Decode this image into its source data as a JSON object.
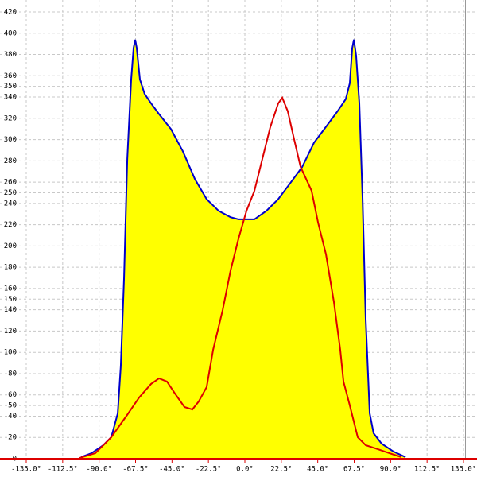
{
  "chart_data": {
    "type": "area-line",
    "xlim": [
      -135,
      135
    ],
    "ylim": [
      0,
      420
    ],
    "xticks": [
      {
        "value": -135,
        "label": "-135.0°"
      },
      {
        "value": -112.5,
        "label": "-112.5°"
      },
      {
        "value": -90,
        "label": "-90.0°"
      },
      {
        "value": -67.5,
        "label": "-67.5°"
      },
      {
        "value": -45,
        "label": "-45.0°"
      },
      {
        "value": -22.5,
        "label": "-22.5°"
      },
      {
        "value": 0,
        "label": "0.0°"
      },
      {
        "value": 22.5,
        "label": "22.5°"
      },
      {
        "value": 45,
        "label": "45.0°"
      },
      {
        "value": 67.5,
        "label": "67.5°"
      },
      {
        "value": 90,
        "label": "90.0°"
      },
      {
        "value": 112.5,
        "label": "112.5°"
      },
      {
        "value": 135,
        "label": "135.0°"
      }
    ],
    "yticks": [
      0,
      20,
      40,
      50,
      60,
      80,
      100,
      120,
      140,
      150,
      160,
      180,
      200,
      220,
      240,
      250,
      260,
      280,
      300,
      320,
      340,
      350,
      360,
      380,
      400,
      420
    ],
    "grid": true,
    "series": [
      {
        "color": "#0000cc",
        "fill": "#ffff00",
        "x": [
          -101.1,
          -94.7,
          -87.4,
          -82.5,
          -78.5,
          -76.6,
          -74.6,
          -72.6,
          -70.2,
          -68.7,
          -67.7,
          -66.8,
          -64.8,
          -61.9,
          -57.9,
          -53,
          -45.7,
          -38.3,
          -30.9,
          -23.6,
          -16.2,
          -8.8,
          -3.9,
          1,
          5.9,
          13.3,
          20.6,
          28,
          35.3,
          42.7,
          50.1,
          57.4,
          62.3,
          64.8,
          66.3,
          67.3,
          68.7,
          70.7,
          72.7,
          74.6,
          77.1,
          79.5,
          84.4,
          91.8,
          99.2
        ],
        "values": [
          1.5,
          5.2,
          12.7,
          20.2,
          42.6,
          87.4,
          169.7,
          281.8,
          356.5,
          386.4,
          393.9,
          386.4,
          356.5,
          343,
          334,
          324,
          310,
          289,
          263,
          244,
          233,
          227,
          225,
          225,
          225,
          233,
          244,
          259,
          274,
          297,
          312,
          327,
          338,
          353,
          386,
          394,
          379,
          334,
          244,
          132,
          42.6,
          23.9,
          14.2,
          6.7,
          1.5
        ]
      },
      {
        "color": "#dd0000",
        "x": [
          -102.1,
          -92.3,
          -82.5,
          -72.7,
          -65.3,
          -57.9,
          -53,
          -48.1,
          -43.2,
          -37.3,
          -32.4,
          -28.5,
          -23.6,
          -19.6,
          -13.7,
          -8.8,
          -3.9,
          1,
          5.9,
          10.8,
          15.7,
          20.6,
          23.1,
          26.5,
          30.4,
          34.4,
          37.8,
          41.2,
          45.2,
          50.1,
          55,
          58.9,
          60.9,
          64.8,
          69.7,
          74.6,
          82,
          89.3,
          96.7
        ],
        "values": [
          0.7,
          5.2,
          20.2,
          41.1,
          57.5,
          70.3,
          75.5,
          72.5,
          61.3,
          48.6,
          46.3,
          53.8,
          67.3,
          102.4,
          139.8,
          177.1,
          207,
          233,
          251.9,
          281.8,
          311.7,
          334,
          339.3,
          326.6,
          300.4,
          274.3,
          263.1,
          251.9,
          222,
          192.1,
          147.2,
          102.4,
          72.5,
          50.1,
          20.2,
          12.7,
          9,
          5.2,
          1.5
        ]
      }
    ]
  }
}
